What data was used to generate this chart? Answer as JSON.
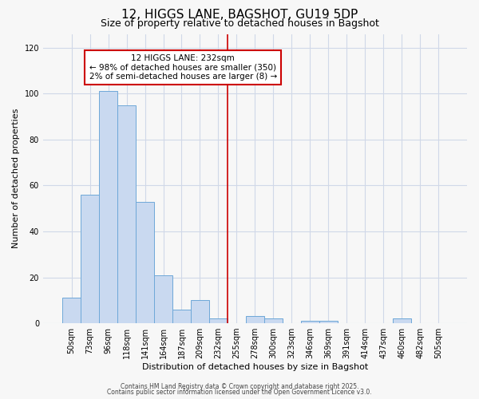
{
  "title": "12, HIGGS LANE, BAGSHOT, GU19 5DP",
  "subtitle": "Size of property relative to detached houses in Bagshot",
  "xlabel": "Distribution of detached houses by size in Bagshot",
  "ylabel": "Number of detached properties",
  "bar_labels": [
    "50sqm",
    "73sqm",
    "96sqm",
    "118sqm",
    "141sqm",
    "164sqm",
    "187sqm",
    "209sqm",
    "232sqm",
    "255sqm",
    "278sqm",
    "300sqm",
    "323sqm",
    "346sqm",
    "369sqm",
    "391sqm",
    "414sqm",
    "437sqm",
    "460sqm",
    "482sqm",
    "505sqm"
  ],
  "bar_values": [
    11,
    56,
    101,
    95,
    53,
    21,
    6,
    10,
    2,
    0,
    3,
    2,
    0,
    1,
    1,
    0,
    0,
    0,
    2,
    0,
    0
  ],
  "bar_width": 1.0,
  "bar_color": "#c9d9f0",
  "bar_edgecolor": "#6ea8d8",
  "vline_x": 8.5,
  "vline_color": "#cc0000",
  "annotation_title": "12 HIGGS LANE: 232sqm",
  "annotation_line1": "← 98% of detached houses are smaller (350)",
  "annotation_line2": "2% of semi-detached houses are larger (8) →",
  "ylim": [
    0,
    126
  ],
  "yticks": [
    0,
    20,
    40,
    60,
    80,
    100,
    120
  ],
  "footnote1": "Contains HM Land Registry data © Crown copyright and database right 2025.",
  "footnote2": "Contains public sector information licensed under the Open Government Licence v3.0.",
  "background_color": "#f7f7f7",
  "grid_color": "#d0d8e8",
  "title_fontsize": 11,
  "subtitle_fontsize": 9,
  "ylabel_fontsize": 8,
  "xlabel_fontsize": 8,
  "tick_fontsize": 7,
  "footnote_fontsize": 5.5
}
